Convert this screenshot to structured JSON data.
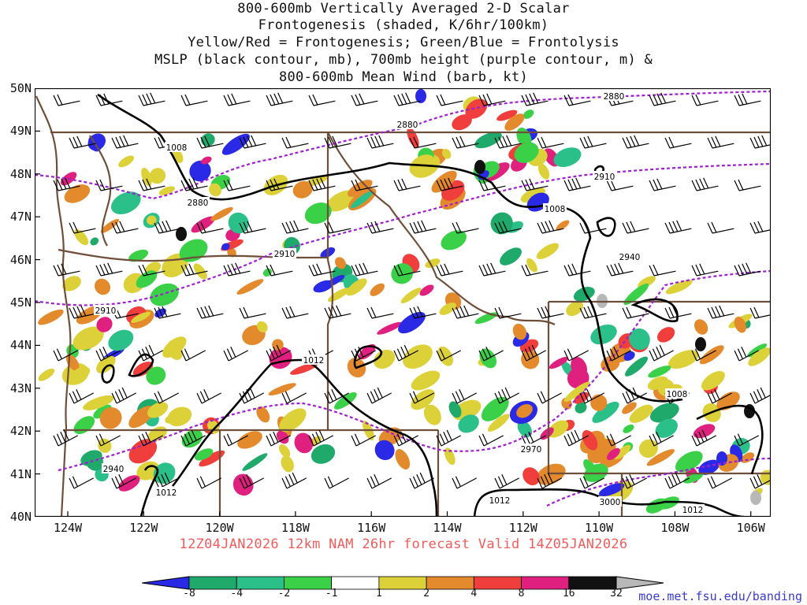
{
  "title": {
    "line1": "800-600mb Vertically Averaged 2-D Scalar",
    "line2": "Frontogenesis (shaded, K/6hr/100km)",
    "line3": "Yellow/Red = Frontogenesis;  Green/Blue = Frontolysis",
    "line4": "MSLP (black contour, mb), 700mb height (purple contour, m) &",
    "line5": "800-600mb Mean Wind (barb, kt)"
  },
  "latitudes": [
    "50N",
    "49N",
    "48N",
    "47N",
    "46N",
    "45N",
    "44N",
    "43N",
    "42N",
    "41N",
    "40N"
  ],
  "longitudes": [
    "124W",
    "122W",
    "120W",
    "118W",
    "116W",
    "114W",
    "112W",
    "110W",
    "108W",
    "106W"
  ],
  "contour_labels": {
    "mslp": [
      "1008",
      "1008",
      "1012",
      "1008",
      "1012",
      "1012",
      "1012"
    ],
    "height": [
      "2880",
      "2880",
      "2880",
      "2910",
      "2910",
      "2910",
      "2940",
      "2970",
      "2940",
      "3000"
    ]
  },
  "valid": "12Z04JAN2026 12km NAM 26hr forecast Valid 14Z05JAN2026",
  "colorbar": {
    "labels": [
      "-8",
      "-4",
      "-2",
      "-1",
      "1",
      "2",
      "4",
      "8",
      "16",
      "32"
    ],
    "colors": [
      "#2a2ae6",
      "#1fa96a",
      "#2bc08a",
      "#3ad048",
      "#ffffff",
      "#ddd13a",
      "#e38a2c",
      "#ef3e3c",
      "#e0207e",
      "#111111",
      "#b8b8b8"
    ]
  },
  "footer": "moe.met.fsu.edu/banding"
}
